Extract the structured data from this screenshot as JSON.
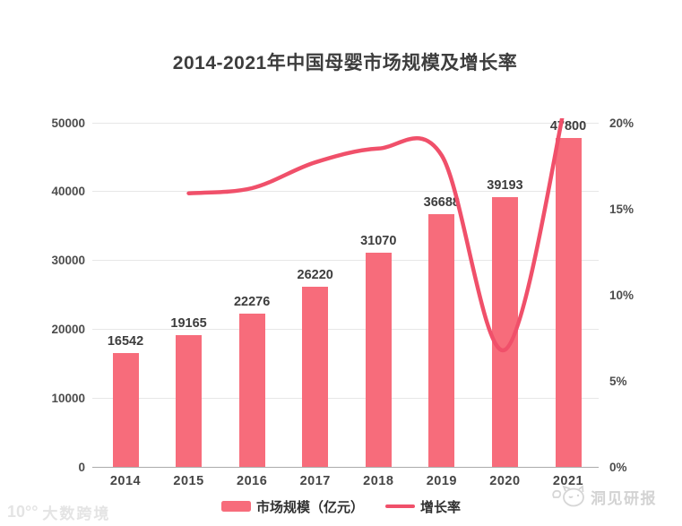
{
  "title": "2014-2021年中国母婴市场规模及增长率",
  "chart_data": {
    "type": "bar",
    "subtype": "bar+line combo, dual axis",
    "categories": [
      "2014",
      "2015",
      "2016",
      "2017",
      "2018",
      "2019",
      "2020",
      "2021"
    ],
    "series": [
      {
        "name": "市场规模（亿元）",
        "type": "bar",
        "axis": "left",
        "color": "#F76C7B",
        "values": [
          16542,
          19165,
          22276,
          26220,
          31070,
          36688,
          39193,
          47800
        ]
      },
      {
        "name": "增长率",
        "type": "line",
        "axis": "right",
        "unit": "%",
        "color": "#F0506A",
        "smooth": true,
        "values": [
          null,
          15.9,
          16.2,
          17.7,
          18.5,
          18.1,
          6.8,
          22.0
        ]
      }
    ],
    "left_axis": {
      "min": 0,
      "max": 50000,
      "ticks_top_to_bottom": [
        "50000",
        "40000",
        "30000",
        "20000",
        "10000",
        "0"
      ]
    },
    "right_axis": {
      "min": 0,
      "max": 20,
      "ticks_top_to_bottom": [
        "20%",
        "15%",
        "10%",
        "5%",
        "0%"
      ]
    },
    "grid": "horizontal gridlines on",
    "value_labels": "shown above bars",
    "legend_position": "bottom center",
    "title": "2014-2021年中国母婴市场规模及增长率"
  },
  "legend": {
    "items": [
      {
        "label": "市场规模（亿元）",
        "swatch": "bar"
      },
      {
        "label": "增长率",
        "swatch": "line"
      }
    ]
  },
  "watermarks": {
    "bottom_left": {
      "logo": "10°°",
      "text": "大数跨境"
    },
    "bottom_right": {
      "text": "洞见研报"
    }
  },
  "colors": {
    "bar": "#F76C7B",
    "line": "#F0506A",
    "title_text": "#3D3D3D",
    "axis_text": "#4D4D4D",
    "gridline": "#E7E7E7",
    "axis_baseline": "#ABABAB",
    "watermark_left": "#E4E4E4",
    "watermark_right": "#D3D3D3"
  }
}
